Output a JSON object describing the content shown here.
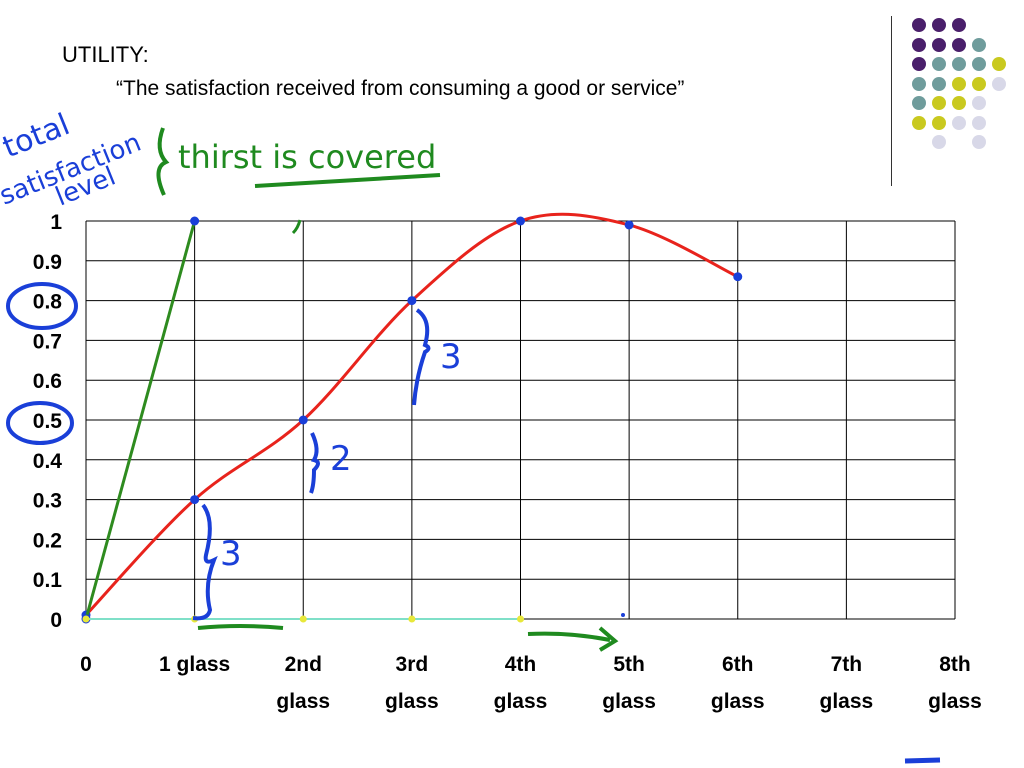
{
  "slide": {
    "title": "UTILITY:",
    "subtitle": "“The satisfaction received from consuming a good or service”"
  },
  "decor": {
    "dot_colors": [
      "#4a1f6b",
      "#6f9c9c",
      "#c9c91f",
      "#d8d8e8"
    ]
  },
  "chart_data": {
    "type": "line",
    "categories": [
      "0",
      "1 glass",
      "2nd glass",
      "3rd glass",
      "4th glass",
      "5th glass",
      "6th glass",
      "7th glass",
      "8th glass"
    ],
    "ylim": [
      0,
      1
    ],
    "yticks": [
      "0",
      "0.1",
      "0.2",
      "0.3",
      "0.4",
      "0.5",
      "0.6",
      "0.7",
      "0.8",
      "0.9",
      "1"
    ],
    "grid": true,
    "series": [
      {
        "color": "#e8231c",
        "x": [
          0,
          1,
          2,
          3,
          4,
          5,
          6
        ],
        "values": [
          0.01,
          0.3,
          0.5,
          0.8,
          1.0,
          0.99,
          0.86
        ]
      },
      {
        "color": "#2e8b1f",
        "x": [
          0,
          1
        ],
        "values": [
          0.0,
          1.0
        ]
      },
      {
        "color": "#7fe0c8",
        "x": [
          0,
          1,
          2,
          3,
          4
        ],
        "values": [
          0,
          0,
          0,
          0,
          0
        ]
      }
    ]
  },
  "annotations": {
    "left_note": [
      "total",
      "satisfaction",
      "level"
    ],
    "top_note": "thirst is covered",
    "brace_1": "3",
    "brace_2": "2",
    "brace_3": "3"
  }
}
